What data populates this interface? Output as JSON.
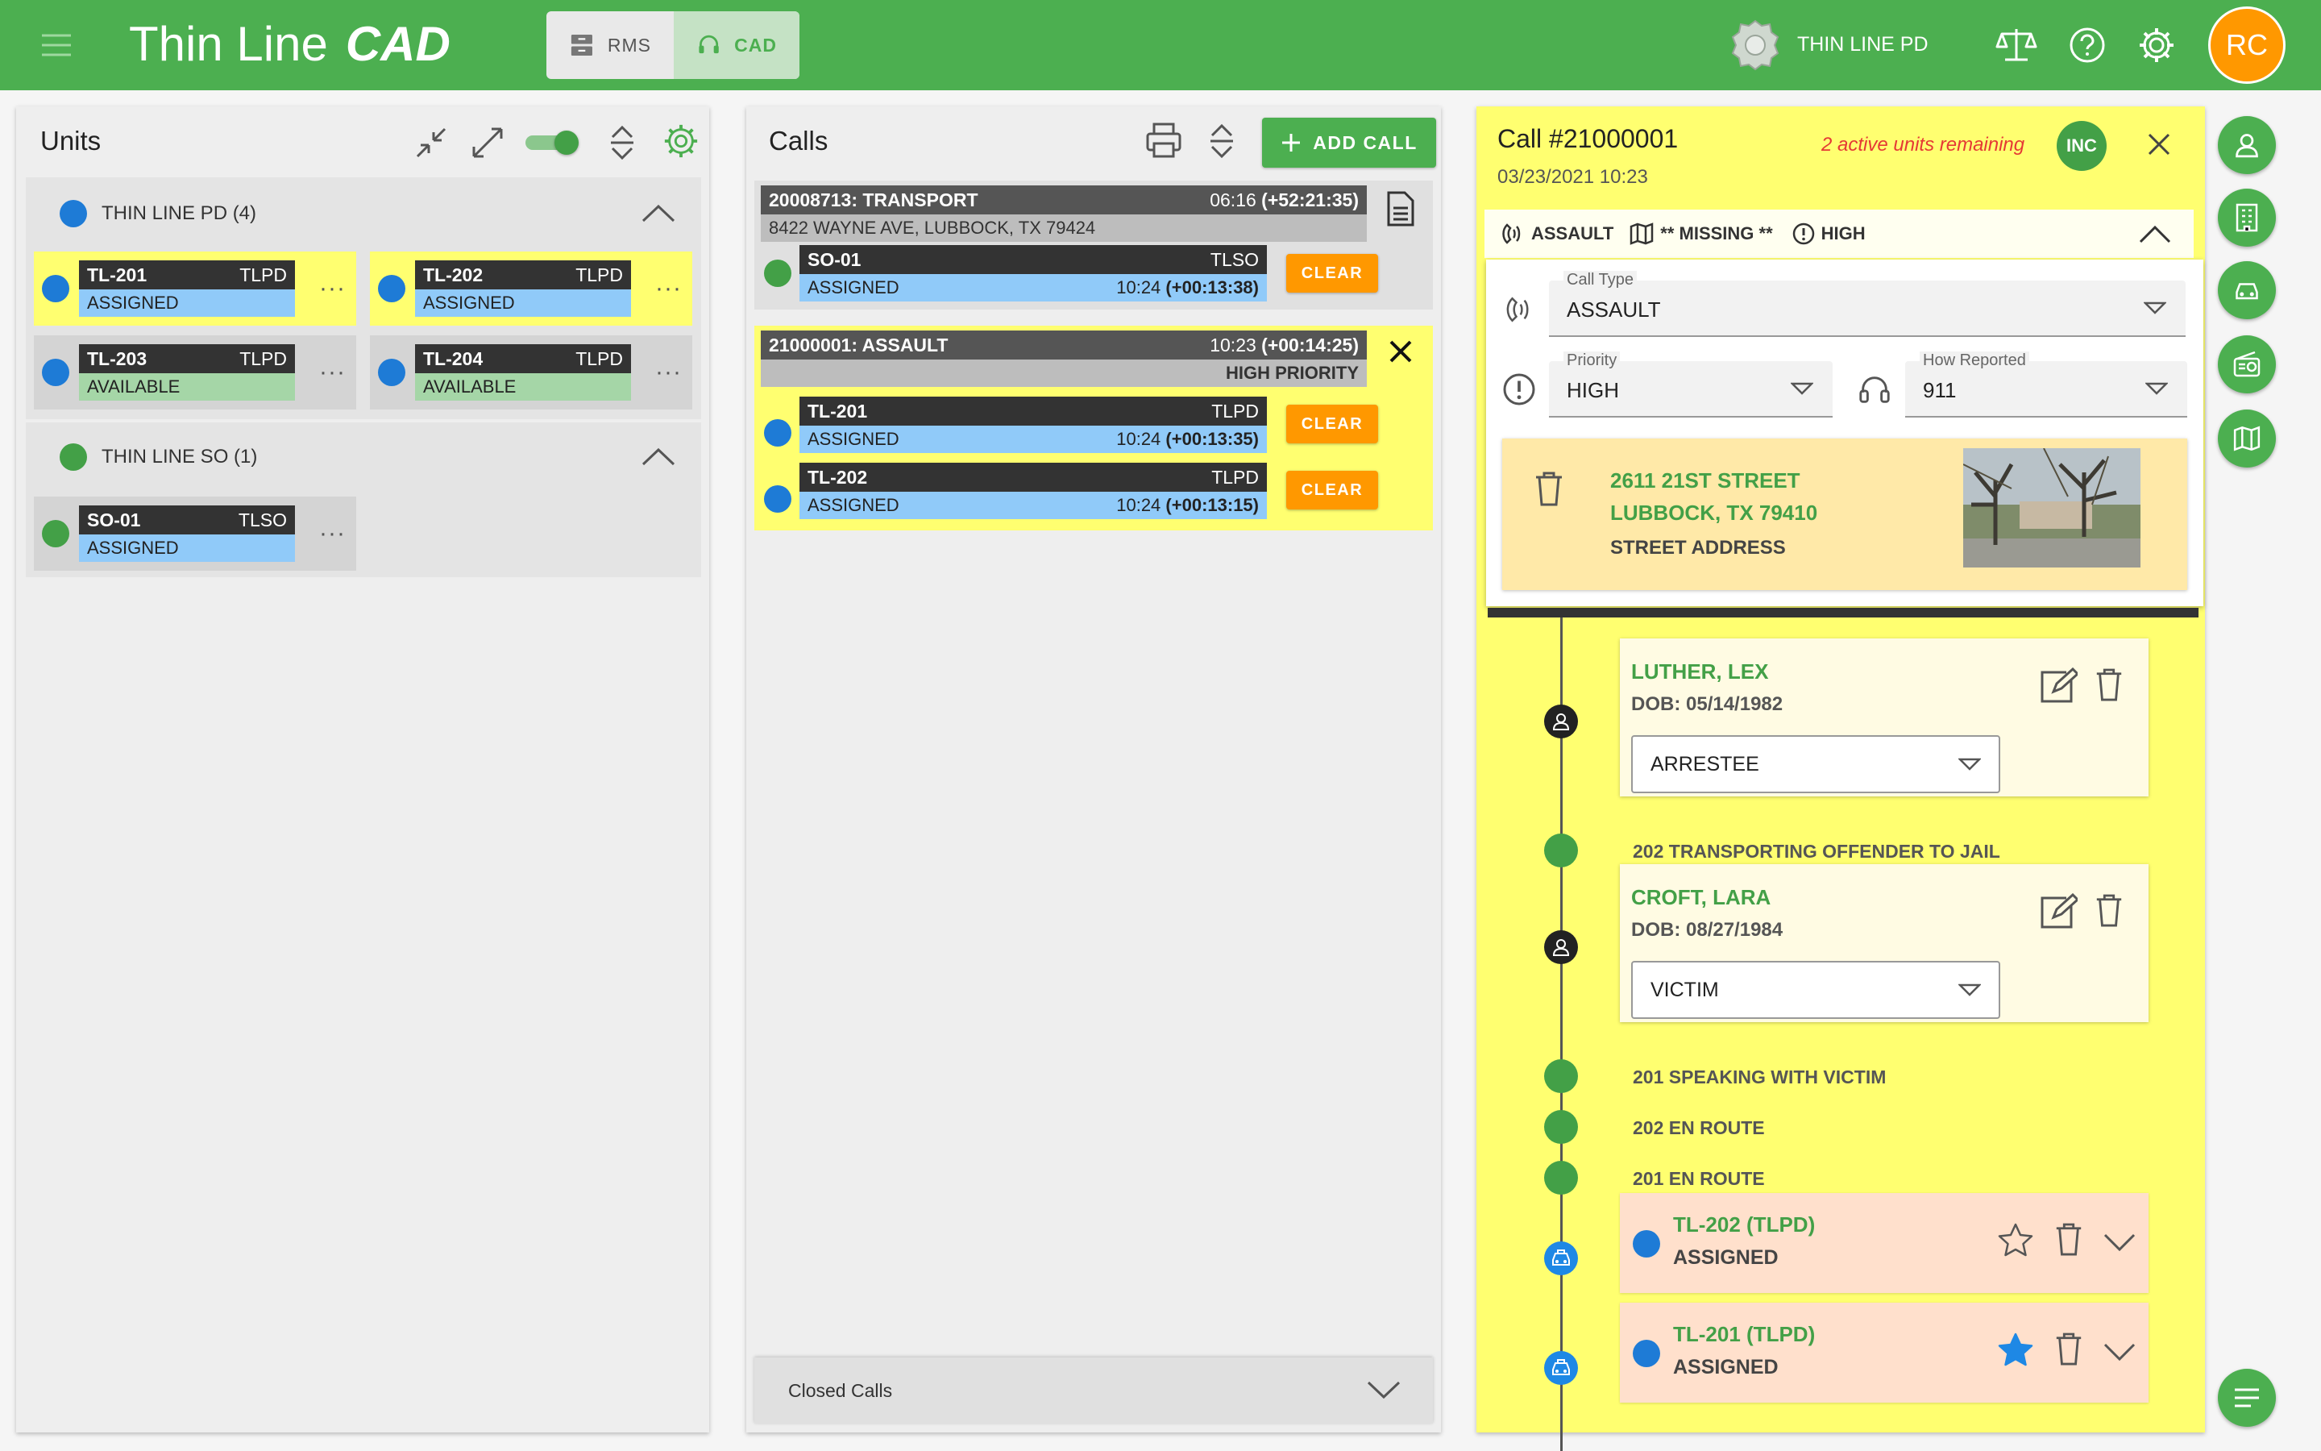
{
  "app": {
    "logo_text": "Thin Line",
    "logo_cad": "CAD",
    "rms_label": "RMS",
    "cad_label": "CAD",
    "agency_name": "THIN LINE PD",
    "user_initials": "RC"
  },
  "colors": {
    "brand": "#4caf50",
    "avatar": "#ff9800",
    "highlight": "#ffff70",
    "assigned": "#90caf9",
    "available": "#a5d6a7",
    "clear": "#ff9800"
  },
  "units": {
    "title": "Units",
    "groups": [
      {
        "name": "THIN LINE PD (4)",
        "units": [
          {
            "id": "TL-201",
            "agency": "TLPD",
            "status": "ASSIGNED"
          },
          {
            "id": "TL-202",
            "agency": "TLPD",
            "status": "ASSIGNED"
          },
          {
            "id": "TL-203",
            "agency": "TLPD",
            "status": "AVAILABLE"
          },
          {
            "id": "TL-204",
            "agency": "TLPD",
            "status": "AVAILABLE"
          }
        ]
      },
      {
        "name": "THIN LINE SO (1)",
        "units": [
          {
            "id": "SO-01",
            "agency": "TLSO",
            "status": "ASSIGNED"
          }
        ]
      }
    ],
    "more_glyph": "···"
  },
  "calls": {
    "title": "Calls",
    "add_label": "ADD CALL",
    "clear_label": "CLEAR",
    "closed_label": "Closed Calls",
    "items": [
      {
        "header": "20008713: TRANSPORT",
        "time": "06:16",
        "elapsed": "(+52:21:35)",
        "sub": "8422 WAYNE AVE, LUBBOCK, TX 79424",
        "units": [
          {
            "id": "SO-01",
            "agency": "TLSO",
            "status": "ASSIGNED",
            "time": "10:24",
            "elapsed": "(+00:13:38)"
          }
        ]
      },
      {
        "header": "21000001: ASSAULT",
        "time": "10:23",
        "elapsed": "(+00:14:25)",
        "sub": "HIGH PRIORITY",
        "units": [
          {
            "id": "TL-201",
            "agency": "TLPD",
            "status": "ASSIGNED",
            "time": "10:24",
            "elapsed": "(+00:13:35)"
          },
          {
            "id": "TL-202",
            "agency": "TLPD",
            "status": "ASSIGNED",
            "time": "10:24",
            "elapsed": "(+00:13:15)"
          }
        ]
      }
    ]
  },
  "detail": {
    "title": "Call #21000001",
    "datetime": "03/23/2021 10:23",
    "remaining": "2 active units remaining",
    "inc_badge": "INC",
    "summary_type": "ASSAULT",
    "summary_map": "** MISSING **",
    "summary_priority": "HIGH",
    "call_type_label": "Call Type",
    "call_type": "ASSAULT",
    "priority_label": "Priority",
    "priority": "HIGH",
    "how_label": "How Reported",
    "how": "911",
    "address_line1": "2611 21ST STREET",
    "address_line2": "LUBBOCK, TX 79410",
    "address_type": "STREET ADDRESS",
    "people": [
      {
        "name": "LUTHER, LEX",
        "dob": "DOB: 05/14/1982",
        "role": "ARRESTEE"
      },
      {
        "name": "CROFT, LARA",
        "dob": "DOB: 08/27/1984",
        "role": "VICTIM"
      }
    ],
    "notes": [
      "202 TRANSPORTING OFFENDER TO JAIL",
      "201 SPEAKING WITH VICTIM",
      "202 EN ROUTE",
      "201 EN ROUTE"
    ],
    "unit_entries": [
      {
        "name": "TL-202 (TLPD)",
        "status": "ASSIGNED",
        "starred": false
      },
      {
        "name": "TL-201 (TLPD)",
        "status": "ASSIGNED",
        "starred": true
      }
    ]
  },
  "icons": [
    "hamburger-icon",
    "rms-icon",
    "headset-icon",
    "badge-icon",
    "scale-icon",
    "help-icon",
    "gear-icon",
    "collapse-icon",
    "expand-icon",
    "sort-icon",
    "print-icon",
    "document-icon",
    "close-icon",
    "phone-icon",
    "map-icon",
    "alert-icon",
    "trash-icon",
    "edit-icon",
    "person-icon",
    "car-icon",
    "star-icon",
    "chevron-down-icon",
    "building-icon",
    "radio-icon",
    "list-icon"
  ]
}
